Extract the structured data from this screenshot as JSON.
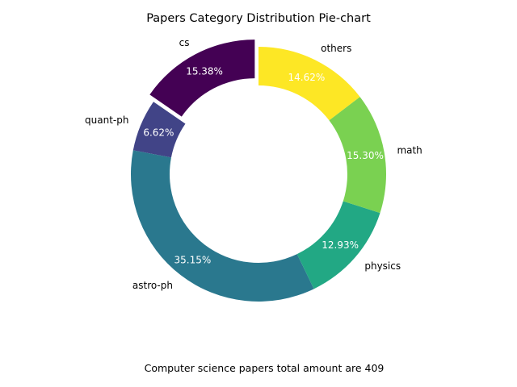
{
  "chart_data": {
    "type": "pie",
    "title": "Papers Category Distribution Pie-chart",
    "donut": true,
    "start_angle_deg": 90,
    "direction": "counterclockwise",
    "slices": [
      {
        "label": "cs",
        "value": 15.38,
        "pct_text": "15.38%",
        "color": "#440154",
        "exploded": true
      },
      {
        "label": "quant-ph",
        "value": 6.62,
        "pct_text": "6.62%",
        "color": "#414487",
        "exploded": false
      },
      {
        "label": "astro-ph",
        "value": 35.15,
        "pct_text": "35.15%",
        "color": "#2a788e",
        "exploded": false
      },
      {
        "label": "physics",
        "value": 12.93,
        "pct_text": "12.93%",
        "color": "#22a884",
        "exploded": false
      },
      {
        "label": "math",
        "value": 15.3,
        "pct_text": "15.30%",
        "color": "#7ad151",
        "exploded": false
      },
      {
        "label": "others",
        "value": 14.62,
        "pct_text": "14.62%",
        "color": "#fde725",
        "exploded": false
      }
    ],
    "annotation": "Computer science papers total amount are 409"
  }
}
